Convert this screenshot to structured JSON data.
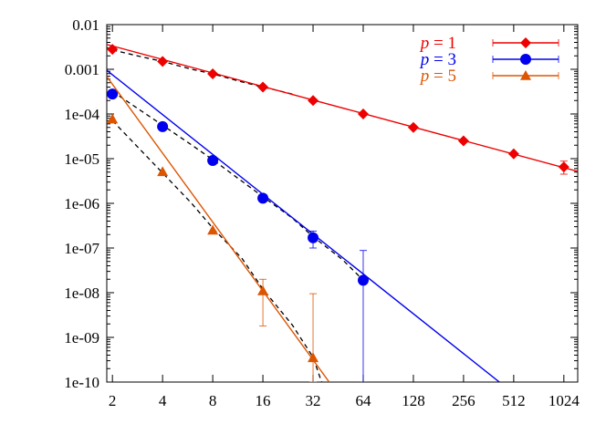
{
  "chart_data": {
    "type": "scatter",
    "xscale": "log2",
    "yscale": "log10",
    "xlim": [
      1.85,
      1240
    ],
    "ylim": [
      1e-10,
      0.01
    ],
    "x_ticks": [
      2,
      4,
      8,
      16,
      32,
      64,
      128,
      256,
      512,
      1024
    ],
    "x_tick_labels": [
      "2",
      "4",
      "8",
      "16",
      "32",
      "64",
      "128",
      "256",
      "512",
      "1024"
    ],
    "y_ticks": [
      1e-10,
      1e-09,
      1e-08,
      1e-07,
      1e-06,
      1e-05,
      0.0001,
      0.001,
      0.01
    ],
    "y_tick_labels": [
      "1e-10",
      "1e-09",
      "1e-08",
      "1e-07",
      "1e-06",
      "1e-05",
      "1e-04",
      "0.001",
      "0.01"
    ],
    "legend_position": "top-right",
    "grid": false,
    "series": [
      {
        "name": "p = 1",
        "legend_var": "p",
        "legend_val": "= 1",
        "color": "#ee0000",
        "marker": "diamond",
        "points": [
          {
            "x": 2,
            "y": 0.0028
          },
          {
            "x": 4,
            "y": 0.0015
          },
          {
            "x": 8,
            "y": 0.00079
          },
          {
            "x": 16,
            "y": 0.0004
          },
          {
            "x": 32,
            "y": 0.0002
          },
          {
            "x": 64,
            "y": 0.0001
          },
          {
            "x": 128,
            "y": 5e-05
          },
          {
            "x": 256,
            "y": 2.5e-05
          },
          {
            "x": 512,
            "y": 1.28e-05
          },
          {
            "x": 1024,
            "y": 6.5e-06,
            "ylo": 4.5e-06,
            "yhi": 8.8e-06
          }
        ],
        "fit_line": [
          [
            1.85,
            0.0036
          ],
          [
            1240,
            5.2e-06
          ]
        ]
      },
      {
        "name": "p = 3",
        "legend_var": "p",
        "legend_val": "= 3",
        "color": "#0000ee",
        "marker": "circle",
        "points": [
          {
            "x": 2,
            "y": 0.00028
          },
          {
            "x": 4,
            "y": 5.2e-05
          },
          {
            "x": 8,
            "y": 9.1e-06
          },
          {
            "x": 16,
            "y": 1.3e-06
          },
          {
            "x": 32,
            "y": 1.7e-07,
            "ylo": 1e-07,
            "yhi": 2.4e-07
          },
          {
            "x": 64,
            "y": 1.9e-08,
            "ylo": 1e-10,
            "yhi": 8.8e-08
          }
        ],
        "fit_line": [
          [
            1.85,
            0.00095
          ],
          [
            420,
            1e-10
          ]
        ]
      },
      {
        "name": "p = 5",
        "legend_var": "p",
        "legend_val": "= 5",
        "color": "#dd5500",
        "marker": "triangle",
        "points": [
          {
            "x": 2,
            "y": 7.7e-05
          },
          {
            "x": 4,
            "y": 5.1e-06
          },
          {
            "x": 8,
            "y": 2.5e-07
          },
          {
            "x": 16,
            "y": 1.1e-08,
            "ylo": 1.8e-09,
            "yhi": 2e-08
          },
          {
            "x": 32,
            "y": 3.5e-10,
            "ylo": 1e-10,
            "yhi": 9.5e-09
          }
        ],
        "fit_line": [
          [
            1.85,
            0.00069
          ],
          [
            40,
            1e-10
          ]
        ]
      }
    ],
    "dashed_curves": [
      [
        [
          2,
          0.0027
        ],
        [
          3,
          0.0019
        ],
        [
          4,
          0.0015
        ],
        [
          6,
          0.001
        ],
        [
          8,
          0.00079
        ],
        [
          12,
          0.00052
        ],
        [
          16,
          0.0004
        ],
        [
          20,
          0.00033
        ],
        [
          24,
          0.00028
        ]
      ],
      [
        [
          2,
          0.00032
        ],
        [
          3,
          0.000115
        ],
        [
          4,
          5.6e-05
        ],
        [
          6,
          2e-05
        ],
        [
          8,
          9.5e-06
        ],
        [
          12,
          3.1e-06
        ],
        [
          16,
          1.4e-06
        ],
        [
          24,
          4.7e-07
        ],
        [
          32,
          1.8e-07
        ],
        [
          48,
          5.5e-08
        ],
        [
          64,
          1.9e-08
        ]
      ],
      [
        [
          2,
          7.1e-05
        ],
        [
          3,
          1.47e-05
        ],
        [
          4,
          4.8e-06
        ],
        [
          6,
          9.8e-07
        ],
        [
          8,
          2.8e-07
        ],
        [
          12,
          5.8e-08
        ],
        [
          16,
          1.2e-08
        ],
        [
          24,
          1.9e-09
        ],
        [
          32,
          3.6e-10
        ],
        [
          36,
          1e-10
        ]
      ]
    ]
  }
}
